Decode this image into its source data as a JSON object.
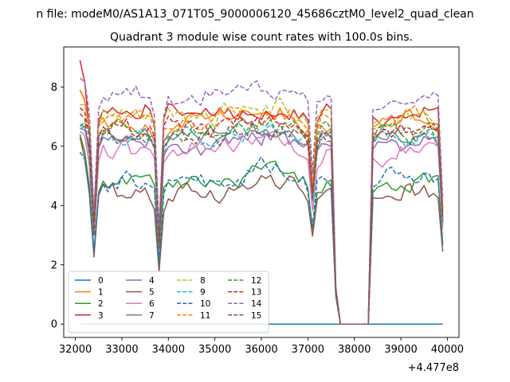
{
  "chart_data": {
    "type": "line",
    "suptitle": "n file: modeM0/AS1A13_071T05_9000006120_45686cztM0_level2_quad_clean",
    "title": "Quadrant 3 module wise count rates with 100.0s bins.",
    "xlabel": "",
    "ylabel": "",
    "x_offset_label": "+4.477e8",
    "x_range": [
      32100,
      39900
    ],
    "xlim": [
      31750,
      40250
    ],
    "ylim": [
      -0.45,
      9.35
    ],
    "x_ticks": [
      32000,
      33000,
      34000,
      35000,
      36000,
      37000,
      38000,
      39000,
      40000
    ],
    "y_ticks": [
      0,
      2,
      4,
      6,
      8
    ],
    "x_tick_labels": [
      "32000",
      "33000",
      "34000",
      "35000",
      "36000",
      "37000",
      "38000",
      "39000",
      "40000"
    ],
    "y_tick_labels": [
      "0",
      "2",
      "4",
      "6",
      "8"
    ],
    "grid": false,
    "legend_placement": "lower-left",
    "legend_columns": 4,
    "gap_x_range": [
      37700,
      38300
    ],
    "dips": [
      {
        "x": 32400,
        "depth": 0.5
      },
      {
        "x": 33800,
        "depth": 0.58
      },
      {
        "x": 37100,
        "depth": 0.33
      },
      {
        "x": 37600,
        "depth": 0.9
      }
    ],
    "series": [
      {
        "name": "0",
        "color": "#1f77b4",
        "dash": "solid",
        "level": 0.0,
        "start": 0.0
      },
      {
        "name": "1",
        "color": "#ff7f0e",
        "dash": "solid",
        "level": 6.75,
        "start": 7.9
      },
      {
        "name": "2",
        "color": "#2ca02c",
        "dash": "solid",
        "level": 4.85,
        "start": 6.4
      },
      {
        "name": "3",
        "color": "#d62728",
        "dash": "solid",
        "level": 7.05,
        "start": 8.9
      },
      {
        "name": "4",
        "color": "#9467bd",
        "dash": "solid",
        "level": 6.1,
        "start": 6.6
      },
      {
        "name": "5",
        "color": "#8c564b",
        "dash": "solid",
        "level": 4.45,
        "start": 6.3
      },
      {
        "name": "6",
        "color": "#e377c2",
        "dash": "solid",
        "level": 5.85,
        "start": 6.5
      },
      {
        "name": "7",
        "color": "#7f7f7f",
        "dash": "solid",
        "level": 6.25,
        "start": 6.7
      },
      {
        "name": "8",
        "color": "#bcbd22",
        "dash": "dashed",
        "level": 7.0,
        "start": 7.4
      },
      {
        "name": "9",
        "color": "#17becf",
        "dash": "dashed",
        "level": 6.3,
        "start": 6.6
      },
      {
        "name": "10",
        "color": "#1f77b4",
        "dash": "dashed",
        "level": 4.95,
        "start": 5.8
      },
      {
        "name": "11",
        "color": "#ff7f0e",
        "dash": "dashed",
        "level": 6.85,
        "start": 7.9
      },
      {
        "name": "12",
        "color": "#2ca02c",
        "dash": "dashed",
        "level": 6.5,
        "start": 6.7
      },
      {
        "name": "13",
        "color": "#d62728",
        "dash": "dashed",
        "level": 6.6,
        "start": 7.3
      },
      {
        "name": "14",
        "color": "#9467bd",
        "dash": "dashed",
        "level": 7.65,
        "start": 8.3
      },
      {
        "name": "15",
        "color": "#8c564b",
        "dash": "dashed",
        "level": 6.35,
        "start": 7.1
      }
    ]
  }
}
